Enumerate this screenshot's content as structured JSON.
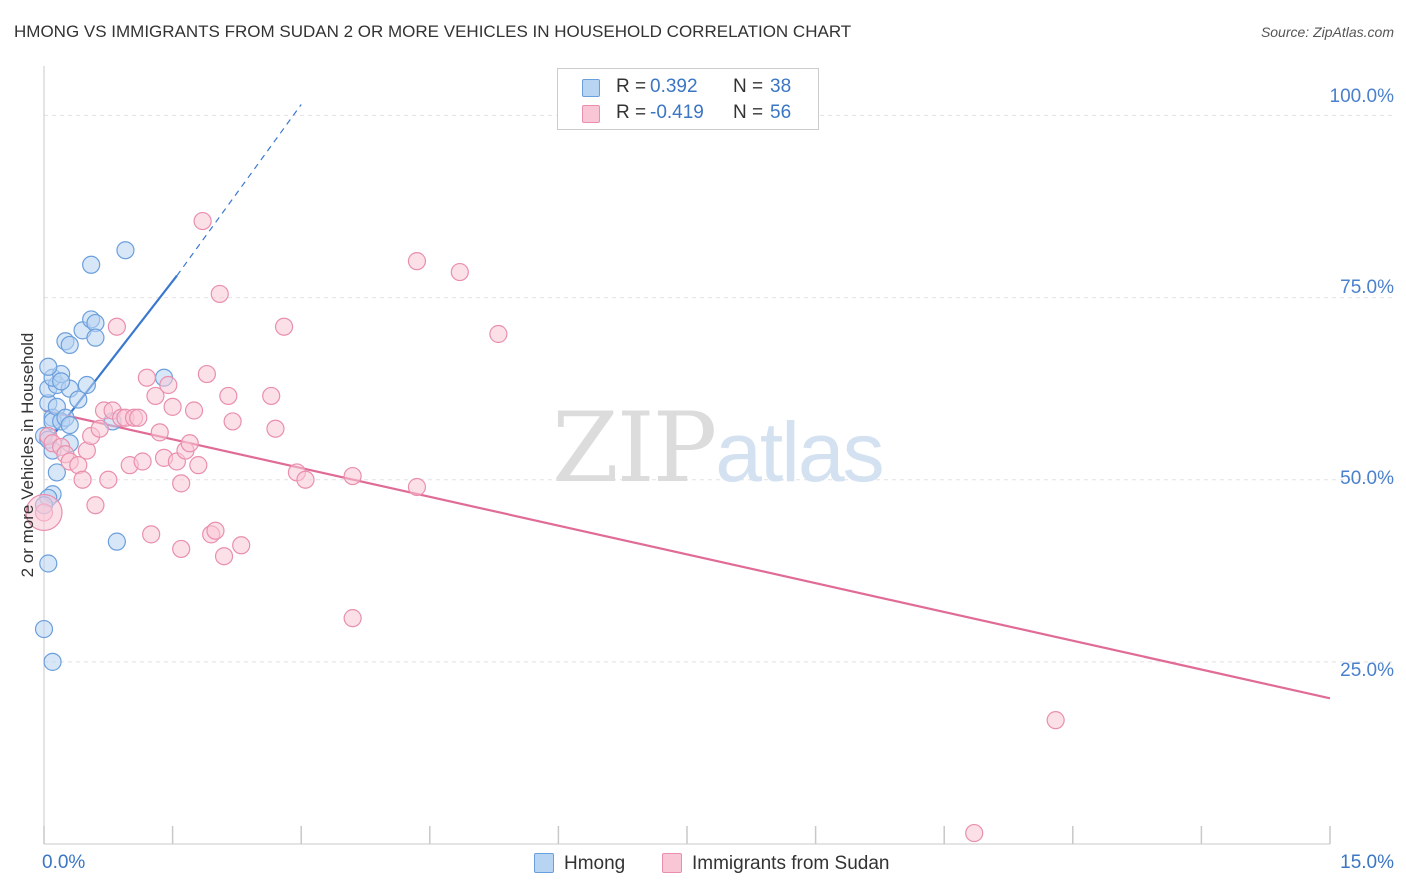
{
  "title": "HMONG VS IMMIGRANTS FROM SUDAN 2 OR MORE VEHICLES IN HOUSEHOLD CORRELATION CHART",
  "source": "Source: ZipAtlas.com",
  "watermark": {
    "zip": "ZIP",
    "atlas": "atlas"
  },
  "stats": [
    {
      "r_label": "R =",
      "r_value": "0.392",
      "n_label": "N =",
      "n_value": "38"
    },
    {
      "r_label": "R =",
      "r_value": "-0.419",
      "n_label": "N =",
      "n_value": "56"
    }
  ],
  "colors": {
    "hmong_fill": "#b8d4f3",
    "hmong_stroke": "#6b9fdc",
    "hmong_line": "#3a78cf",
    "sudan_fill": "#f9c6d6",
    "sudan_stroke": "#e98fae",
    "sudan_line": "#e06b96",
    "grid": "#e2e2e2",
    "value_text": "#3a76c4"
  },
  "chart_data": {
    "type": "scatter",
    "title": "HMONG VS IMMIGRANTS FROM SUDAN 2 OR MORE VEHICLES IN HOUSEHOLD CORRELATION CHART",
    "xlabel": "",
    "ylabel": "2 or more Vehicles in Household",
    "xlim": [
      0,
      15
    ],
    "ylim": [
      0,
      105
    ],
    "x_tick_labels": [
      {
        "value": 0,
        "label": "0.0%"
      },
      {
        "value": 15,
        "label": "15.0%"
      }
    ],
    "y_tick_labels": [
      {
        "value": 25,
        "label": "25.0%"
      },
      {
        "value": 50,
        "label": "50.0%"
      },
      {
        "value": 75,
        "label": "75.0%"
      },
      {
        "value": 100,
        "label": "100.0%"
      }
    ],
    "series": [
      {
        "name": "Hmong",
        "points": [
          [
            0.05,
            60.5
          ],
          [
            0.1,
            58.5
          ],
          [
            0.0,
            56.0
          ],
          [
            0.1,
            58.0
          ],
          [
            0.3,
            55.0
          ],
          [
            0.05,
            62.5
          ],
          [
            0.15,
            63.0
          ],
          [
            0.1,
            64.0
          ],
          [
            0.2,
            64.5
          ],
          [
            0.05,
            65.5
          ],
          [
            0.25,
            69.0
          ],
          [
            0.3,
            68.5
          ],
          [
            0.45,
            70.5
          ],
          [
            0.55,
            72.0
          ],
          [
            0.6,
            71.5
          ],
          [
            0.6,
            69.5
          ],
          [
            0.3,
            62.5
          ],
          [
            0.4,
            61.0
          ],
          [
            0.5,
            63.0
          ],
          [
            0.15,
            60.0
          ],
          [
            0.2,
            58.0
          ],
          [
            0.25,
            58.5
          ],
          [
            0.3,
            57.5
          ],
          [
            0.05,
            55.5
          ],
          [
            0.1,
            54.0
          ],
          [
            0.15,
            51.0
          ],
          [
            0.1,
            48.0
          ],
          [
            0.05,
            47.5
          ],
          [
            0.0,
            46.5
          ],
          [
            0.05,
            38.5
          ],
          [
            0.0,
            29.5
          ],
          [
            0.1,
            25.0
          ],
          [
            0.55,
            79.5
          ],
          [
            0.95,
            81.5
          ],
          [
            0.85,
            41.5
          ],
          [
            0.8,
            58.0
          ],
          [
            1.4,
            64.0
          ],
          [
            0.2,
            63.5
          ]
        ]
      },
      {
        "name": "Immigrants from Sudan",
        "points": [
          [
            0.0,
            45.5
          ],
          [
            0.05,
            56.0
          ],
          [
            0.1,
            55.0
          ],
          [
            0.2,
            54.5
          ],
          [
            0.25,
            53.5
          ],
          [
            0.3,
            52.5
          ],
          [
            0.4,
            52.0
          ],
          [
            0.45,
            50.0
          ],
          [
            0.5,
            54.0
          ],
          [
            0.55,
            56.0
          ],
          [
            0.6,
            46.5
          ],
          [
            0.65,
            57.0
          ],
          [
            0.7,
            59.5
          ],
          [
            0.75,
            50.0
          ],
          [
            0.8,
            59.5
          ],
          [
            0.85,
            71.0
          ],
          [
            0.9,
            58.5
          ],
          [
            0.95,
            58.5
          ],
          [
            1.0,
            52.0
          ],
          [
            1.05,
            58.5
          ],
          [
            1.1,
            58.5
          ],
          [
            1.2,
            64.0
          ],
          [
            1.15,
            52.5
          ],
          [
            1.25,
            42.5
          ],
          [
            1.3,
            61.5
          ],
          [
            1.35,
            56.5
          ],
          [
            1.4,
            53.0
          ],
          [
            1.45,
            63.0
          ],
          [
            1.5,
            60.0
          ],
          [
            1.55,
            52.5
          ],
          [
            1.6,
            49.5
          ],
          [
            1.65,
            54.0
          ],
          [
            1.7,
            55.0
          ],
          [
            1.6,
            40.5
          ],
          [
            1.75,
            59.5
          ],
          [
            1.8,
            52.0
          ],
          [
            1.85,
            85.5
          ],
          [
            1.9,
            64.5
          ],
          [
            1.95,
            42.5
          ],
          [
            2.0,
            43.0
          ],
          [
            2.05,
            75.5
          ],
          [
            2.1,
            39.5
          ],
          [
            2.15,
            61.5
          ],
          [
            2.2,
            58.0
          ],
          [
            2.3,
            41.0
          ],
          [
            2.65,
            61.5
          ],
          [
            2.7,
            57.0
          ],
          [
            2.8,
            71.0
          ],
          [
            2.95,
            51.0
          ],
          [
            3.05,
            50.0
          ],
          [
            3.6,
            50.5
          ],
          [
            3.6,
            31.0
          ],
          [
            4.35,
            80.0
          ],
          [
            4.35,
            49.0
          ],
          [
            4.85,
            78.5
          ],
          [
            5.3,
            70.0
          ],
          [
            11.8,
            17.0
          ],
          [
            10.85,
            1.5
          ]
        ]
      }
    ],
    "trendlines": [
      {
        "series": "Hmong",
        "x_start": 0.0,
        "y_start": 54.5,
        "x_solid_end": 1.55,
        "y_solid_end": 78.0,
        "x_dash_end": 3.0,
        "y_dash_end": 101.5
      },
      {
        "series": "Immigrants from Sudan",
        "x_start": 0.0,
        "y_start": 59.5,
        "x_end": 15.0,
        "y_end": 20.0
      }
    ],
    "legend": [
      "Hmong",
      "Immigrants from Sudan"
    ],
    "legend_position": "bottom-center",
    "grid": true
  }
}
